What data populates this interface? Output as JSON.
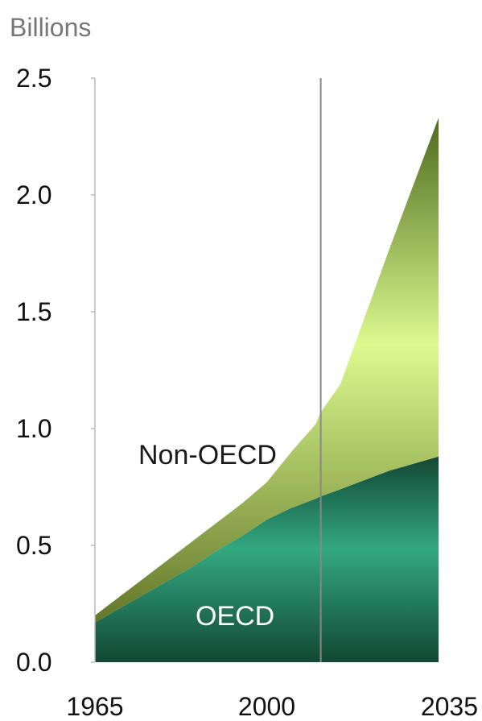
{
  "chart_data": {
    "type": "area",
    "stacked": true,
    "unit_label": "Billions",
    "title": "",
    "xlabel": "",
    "ylabel": "",
    "xlim": [
      1965,
      2035
    ],
    "ylim": [
      0,
      2.5
    ],
    "x_ticks": [
      "1965",
      "2000",
      "2035"
    ],
    "y_ticks": [
      "0.0",
      "0.5",
      "1.0",
      "1.5",
      "2.0",
      "2.5"
    ],
    "projection_start_x": 2011,
    "x": [
      1965,
      1970,
      1975,
      1980,
      1985,
      1990,
      1995,
      2000,
      2005,
      2010,
      2011,
      2015,
      2020,
      2025,
      2030,
      2035
    ],
    "series": [
      {
        "name": "OECD",
        "values": [
          0.17,
          0.23,
          0.29,
          0.35,
          0.41,
          0.48,
          0.54,
          0.61,
          0.66,
          0.7,
          0.71,
          0.74,
          0.78,
          0.82,
          0.85,
          0.88
        ],
        "label_color": "#ffffff"
      },
      {
        "name": "Non-OECD",
        "values": [
          0.03,
          0.05,
          0.07,
          0.09,
          0.11,
          0.12,
          0.14,
          0.16,
          0.24,
          0.32,
          0.36,
          0.45,
          0.7,
          0.95,
          1.2,
          1.45
        ],
        "label_color": "#1a1a1a"
      }
    ],
    "grid": false,
    "legend": "none"
  }
}
